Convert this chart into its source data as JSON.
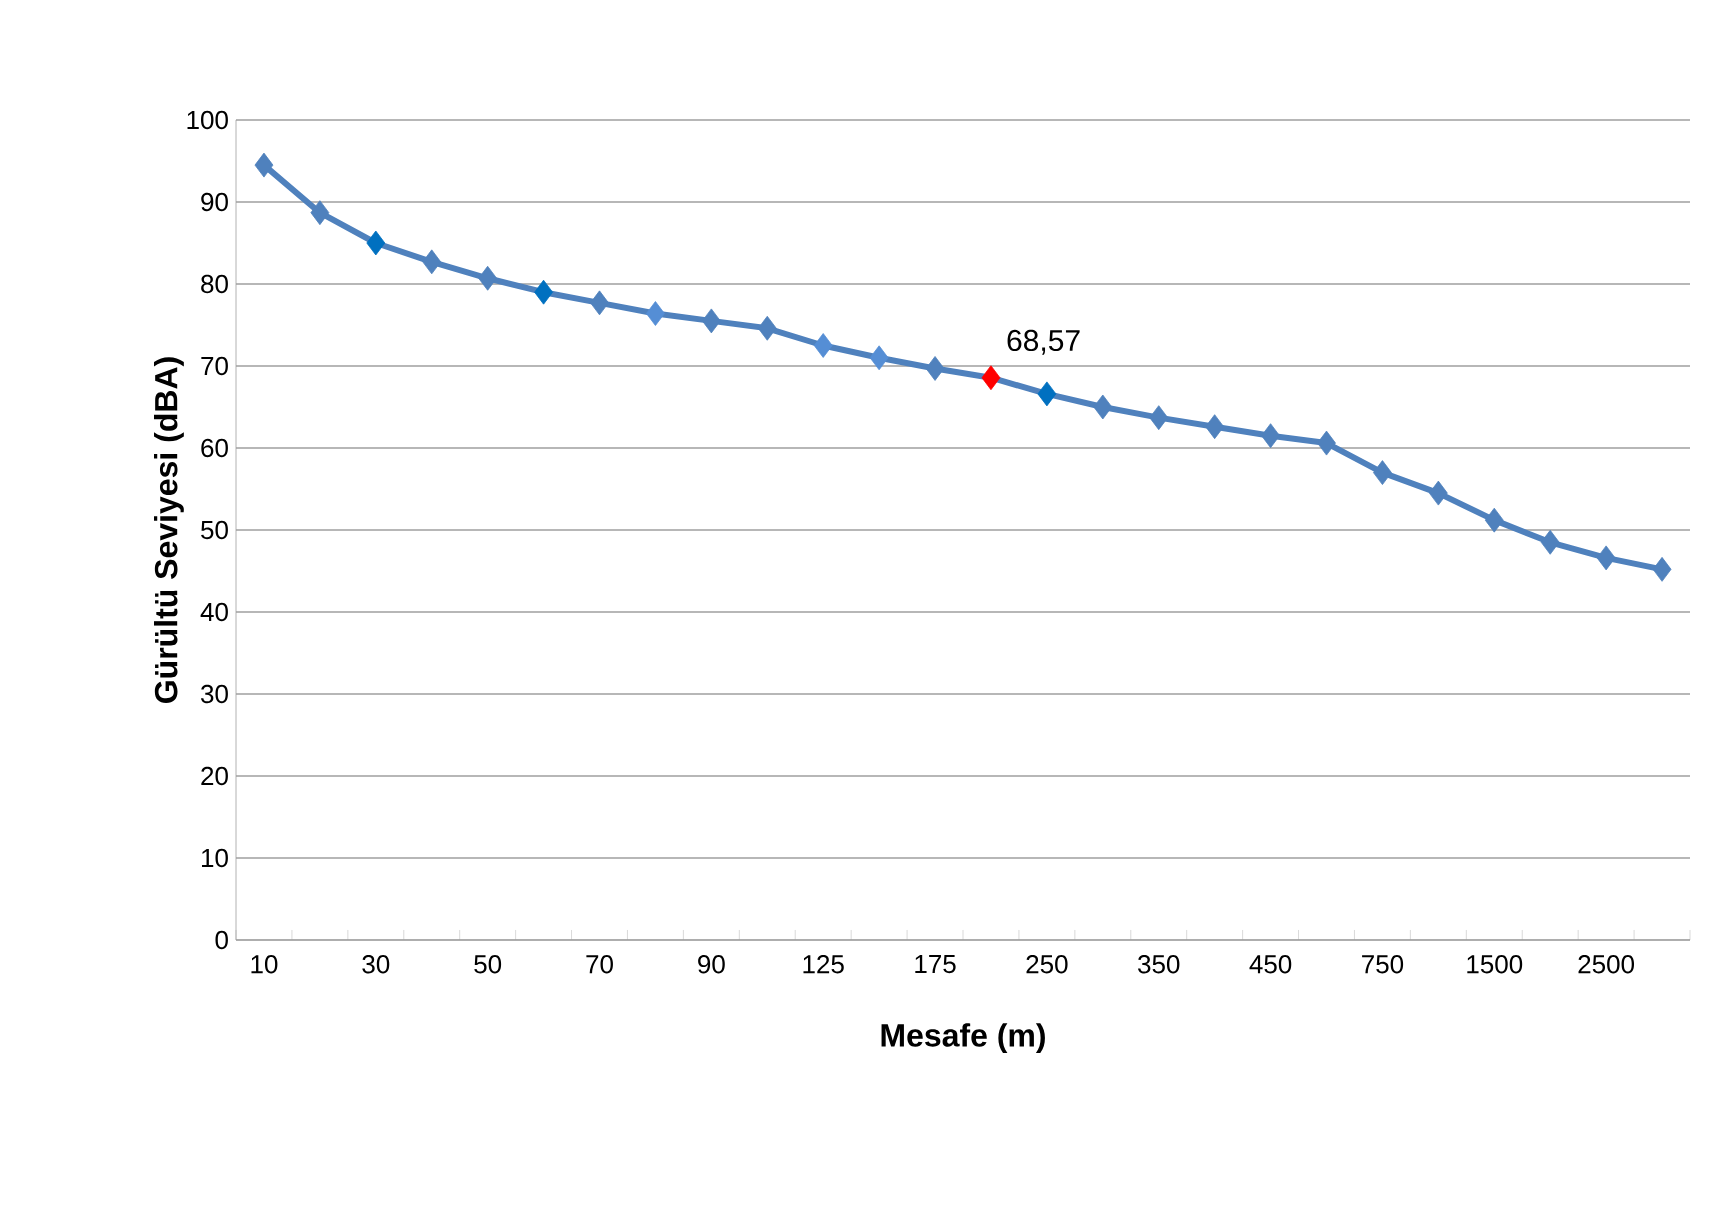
{
  "chart_data": {
    "type": "line",
    "xlabel": "Mesafe (m)",
    "ylabel": "Gürültü Seviyesi (dBA)",
    "categories": [
      "10",
      null,
      "30",
      null,
      "50",
      null,
      "70",
      null,
      "90",
      null,
      "125",
      null,
      "175",
      null,
      "250",
      null,
      "350",
      null,
      "450",
      null,
      "750",
      null,
      "1500",
      null,
      "2500",
      null
    ],
    "series": [
      {
        "color": "#4f81bd",
        "values": [
          94.5,
          88.7,
          85,
          82.7,
          80.7,
          79,
          77.7,
          76.4,
          75.5,
          74.6,
          72.5,
          71,
          69.7,
          68.57,
          66.6,
          65,
          63.7,
          62.6,
          61.5,
          60.6,
          57,
          54.5,
          51.2,
          48.5,
          46.6,
          45.2
        ],
        "colors": [
          "#4f81bd",
          "#4f81bd",
          "#0070c0",
          "#4f81bd",
          "#4f81bd",
          "#0070c0",
          "#4f81bd",
          "#558ed5",
          "#4f81bd",
          "#4f81bd",
          "#558ed5",
          "#558ed5",
          "#4f81bd",
          "#ff0000",
          "#0070c0",
          "#4f81bd",
          "#4f81bd",
          "#4f81bd",
          "#4f81bd",
          "#4f81bd",
          "#4f81bd",
          "#4f81bd",
          "#4f81bd",
          "#4f81bd",
          "#4f81bd",
          "#4f81bd"
        ],
        "value_labels": [
          null,
          null,
          null,
          null,
          null,
          null,
          null,
          null,
          null,
          null,
          null,
          null,
          null,
          "68,57",
          null,
          null,
          null,
          null,
          null,
          null,
          null,
          null,
          null,
          null,
          null,
          null
        ]
      }
    ],
    "ylim": [
      0,
      100
    ],
    "yticks": [
      0,
      10,
      20,
      30,
      40,
      50,
      60,
      70,
      80,
      90,
      100
    ],
    "grid": "y",
    "marker": "diamond",
    "line_style": "solid"
  }
}
